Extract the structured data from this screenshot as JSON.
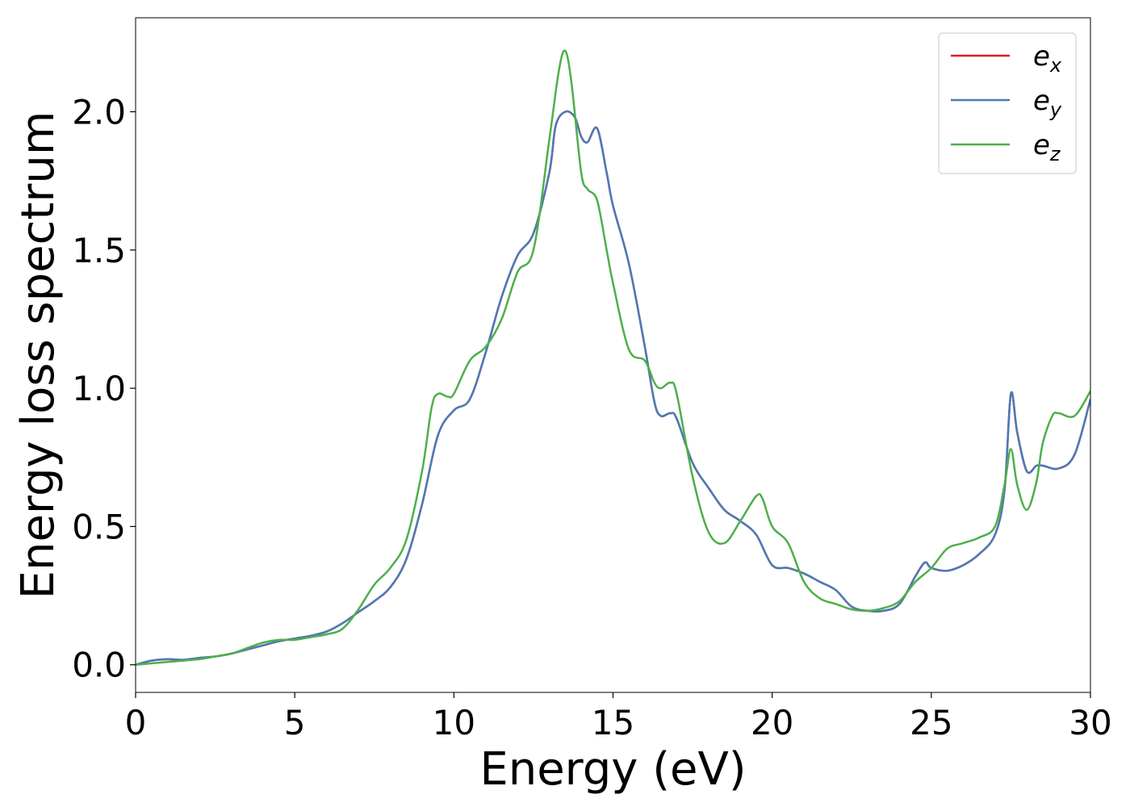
{
  "chart_data": {
    "type": "line",
    "title": "",
    "xlabel": "Energy (eV)",
    "ylabel": "Energy loss spectrum",
    "xlim": [
      0,
      30
    ],
    "ylim": [
      -0.1,
      2.34
    ],
    "xticks": [
      0,
      5,
      10,
      15,
      20,
      25,
      30
    ],
    "xtick_labels": [
      "0",
      "5",
      "10",
      "15",
      "20",
      "25",
      "30"
    ],
    "yticks": [
      0.0,
      0.5,
      1.0,
      1.5,
      2.0
    ],
    "ytick_labels": [
      "0.0",
      "0.5",
      "1.0",
      "1.5",
      "2.0"
    ],
    "grid": false,
    "legend_position": "top-right",
    "series": [
      {
        "name": "e_x",
        "legend_base": "e",
        "legend_sub": "x",
        "color": "#e41a1c",
        "x": [
          0,
          0.5,
          1,
          1.5,
          2,
          2.5,
          3,
          3.5,
          4,
          4.5,
          5,
          5.5,
          6,
          6.5,
          7,
          7.5,
          8,
          8.5,
          9,
          9.5,
          10,
          10.5,
          11,
          11.5,
          12,
          12.5,
          13,
          13.2,
          13.5,
          13.8,
          14,
          14.2,
          14.5,
          14.8,
          15,
          15.5,
          16,
          16.3,
          16.5,
          16.8,
          17,
          17.5,
          18,
          18.5,
          19,
          19.5,
          20,
          20.5,
          21,
          21.5,
          22,
          22.5,
          23,
          23.5,
          24,
          24.5,
          24.8,
          25,
          25.5,
          26,
          26.5,
          27,
          27.3,
          27.5,
          27.7,
          28,
          28.3,
          28.5,
          29,
          29.5,
          30
        ],
        "y": [
          0.0,
          0.015,
          0.02,
          0.018,
          0.025,
          0.03,
          0.04,
          0.055,
          0.07,
          0.085,
          0.095,
          0.105,
          0.12,
          0.15,
          0.19,
          0.23,
          0.28,
          0.38,
          0.58,
          0.83,
          0.92,
          0.96,
          1.13,
          1.33,
          1.48,
          1.56,
          1.78,
          1.95,
          2.0,
          1.98,
          1.91,
          1.89,
          1.94,
          1.78,
          1.66,
          1.45,
          1.15,
          0.95,
          0.9,
          0.91,
          0.89,
          0.73,
          0.64,
          0.56,
          0.52,
          0.47,
          0.36,
          0.35,
          0.33,
          0.3,
          0.27,
          0.21,
          0.195,
          0.195,
          0.22,
          0.32,
          0.37,
          0.35,
          0.34,
          0.36,
          0.4,
          0.47,
          0.63,
          0.98,
          0.84,
          0.7,
          0.72,
          0.72,
          0.71,
          0.76,
          0.96
        ]
      },
      {
        "name": "e_y",
        "legend_base": "e",
        "legend_sub": "y",
        "color": "#4a7bb7",
        "x": [
          0,
          0.5,
          1,
          1.5,
          2,
          2.5,
          3,
          3.5,
          4,
          4.5,
          5,
          5.5,
          6,
          6.5,
          7,
          7.5,
          8,
          8.5,
          9,
          9.5,
          10,
          10.5,
          11,
          11.5,
          12,
          12.5,
          13,
          13.2,
          13.5,
          13.8,
          14,
          14.2,
          14.5,
          14.8,
          15,
          15.5,
          16,
          16.3,
          16.5,
          16.8,
          17,
          17.5,
          18,
          18.5,
          19,
          19.5,
          20,
          20.5,
          21,
          21.5,
          22,
          22.5,
          23,
          23.5,
          24,
          24.5,
          24.8,
          25,
          25.5,
          26,
          26.5,
          27,
          27.3,
          27.5,
          27.7,
          28,
          28.3,
          28.5,
          29,
          29.5,
          30
        ],
        "y": [
          0.0,
          0.015,
          0.02,
          0.018,
          0.025,
          0.03,
          0.04,
          0.055,
          0.07,
          0.085,
          0.095,
          0.105,
          0.12,
          0.15,
          0.19,
          0.23,
          0.28,
          0.38,
          0.58,
          0.83,
          0.92,
          0.96,
          1.13,
          1.33,
          1.48,
          1.56,
          1.78,
          1.95,
          2.0,
          1.98,
          1.91,
          1.89,
          1.94,
          1.78,
          1.66,
          1.45,
          1.15,
          0.95,
          0.9,
          0.91,
          0.89,
          0.73,
          0.64,
          0.56,
          0.52,
          0.47,
          0.36,
          0.35,
          0.33,
          0.3,
          0.27,
          0.21,
          0.195,
          0.195,
          0.22,
          0.32,
          0.37,
          0.35,
          0.34,
          0.36,
          0.4,
          0.47,
          0.63,
          0.98,
          0.84,
          0.7,
          0.72,
          0.72,
          0.71,
          0.76,
          0.96
        ]
      },
      {
        "name": "e_z",
        "legend_base": "e",
        "legend_sub": "z",
        "color": "#4daf4a",
        "x": [
          0,
          0.5,
          1,
          1.5,
          2,
          2.5,
          3,
          3.5,
          4,
          4.5,
          5,
          5.5,
          6,
          6.5,
          7,
          7.5,
          8,
          8.5,
          9,
          9.3,
          9.5,
          9.8,
          10,
          10.5,
          11,
          11.5,
          12,
          12.5,
          13,
          13.3,
          13.5,
          13.7,
          14,
          14.2,
          14.5,
          14.8,
          15,
          15.5,
          16,
          16.3,
          16.5,
          16.8,
          17,
          17.5,
          18,
          18.5,
          19,
          19.5,
          19.7,
          20,
          20.5,
          21,
          21.5,
          22,
          22.5,
          23,
          23.5,
          24,
          24.5,
          25,
          25.5,
          26,
          26.5,
          27,
          27.3,
          27.5,
          27.7,
          28,
          28.3,
          28.5,
          28.8,
          29,
          29.5,
          30
        ],
        "y": [
          0.0,
          0.005,
          0.01,
          0.015,
          0.02,
          0.03,
          0.04,
          0.06,
          0.08,
          0.09,
          0.09,
          0.1,
          0.11,
          0.13,
          0.2,
          0.29,
          0.35,
          0.45,
          0.7,
          0.93,
          0.98,
          0.97,
          0.98,
          1.1,
          1.15,
          1.25,
          1.42,
          1.5,
          1.9,
          2.15,
          2.22,
          2.1,
          1.78,
          1.72,
          1.68,
          1.5,
          1.38,
          1.14,
          1.1,
          1.02,
          1.0,
          1.02,
          0.98,
          0.68,
          0.48,
          0.44,
          0.52,
          0.61,
          0.6,
          0.5,
          0.44,
          0.3,
          0.24,
          0.22,
          0.2,
          0.195,
          0.205,
          0.23,
          0.3,
          0.35,
          0.42,
          0.44,
          0.46,
          0.5,
          0.65,
          0.78,
          0.65,
          0.56,
          0.66,
          0.8,
          0.9,
          0.91,
          0.9,
          0.99
        ]
      }
    ]
  }
}
